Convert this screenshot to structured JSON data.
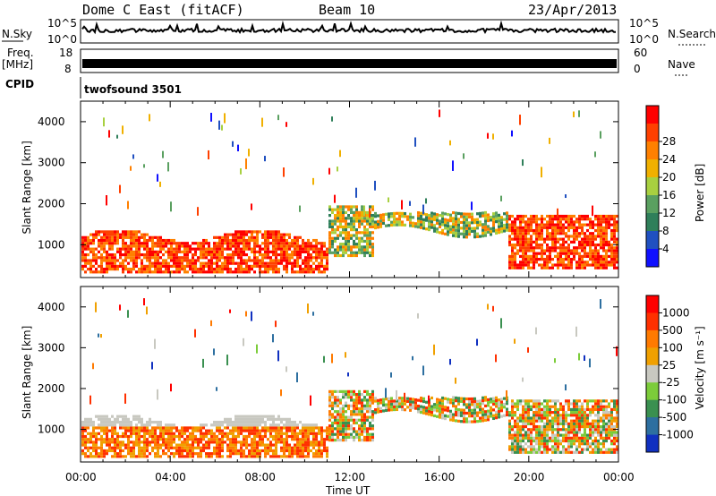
{
  "header": {
    "title": "Dome C East (fitACF)",
    "beam": "Beam 10",
    "date": "23/Apr/2013"
  },
  "strips": {
    "nsky_label": "N.Sky",
    "nsky_top": "10^5",
    "nsky_bottom": "10^0",
    "nsearch_label": "N.Search",
    "freq_label": "Freq.",
    "freq_unit": "[MHz]",
    "freq_top": "18",
    "freq_bottom": "8",
    "nave_label": "Nave",
    "nave_top": "60",
    "nave_bottom": "0",
    "cpid_label": "CPID",
    "cpid_value": "twofsound 3501"
  },
  "chart_data": [
    {
      "type": "heatmap",
      "name": "power",
      "ylabel": "Slant Range [km]",
      "xlabel": "",
      "x_ticks": [
        "00:00",
        "04:00",
        "08:00",
        "12:00",
        "16:00",
        "20:00",
        "00:00"
      ],
      "xlim_hours": [
        0,
        24
      ],
      "y_ticks": [
        1000,
        2000,
        3000,
        4000
      ],
      "ylim": [
        200,
        4500
      ],
      "colorbar": {
        "label": "Power [dB]",
        "ticks": [
          "4",
          "8",
          "12",
          "16",
          "20",
          "24",
          "28"
        ],
        "colors": [
          "#1010ff",
          "#2050c0",
          "#2f7f5a",
          "#5aa060",
          "#a8d040",
          "#f0b000",
          "#ff8000",
          "#ff4000",
          "#ff0000"
        ]
      }
    },
    {
      "type": "heatmap",
      "name": "velocity",
      "ylabel": "Slant Range [km]",
      "xlabel": "Time UT",
      "x_ticks": [
        "00:00",
        "04:00",
        "08:00",
        "12:00",
        "16:00",
        "20:00",
        "00:00"
      ],
      "xlim_hours": [
        0,
        24
      ],
      "y_ticks": [
        1000,
        2000,
        3000,
        4000
      ],
      "ylim": [
        200,
        4500
      ],
      "colorbar": {
        "label": "Velocity [m s⁻¹]",
        "ticks": [
          "1000",
          "500",
          "100",
          "25",
          "-25",
          "-100",
          "-500",
          "-1000"
        ],
        "colors": [
          "#1030c0",
          "#2d6fa0",
          "#3a9050",
          "#7ccc3a",
          "#c8c8c0",
          "#f0a000",
          "#ff7a00",
          "#ff3000",
          "#ff0000"
        ]
      }
    }
  ]
}
